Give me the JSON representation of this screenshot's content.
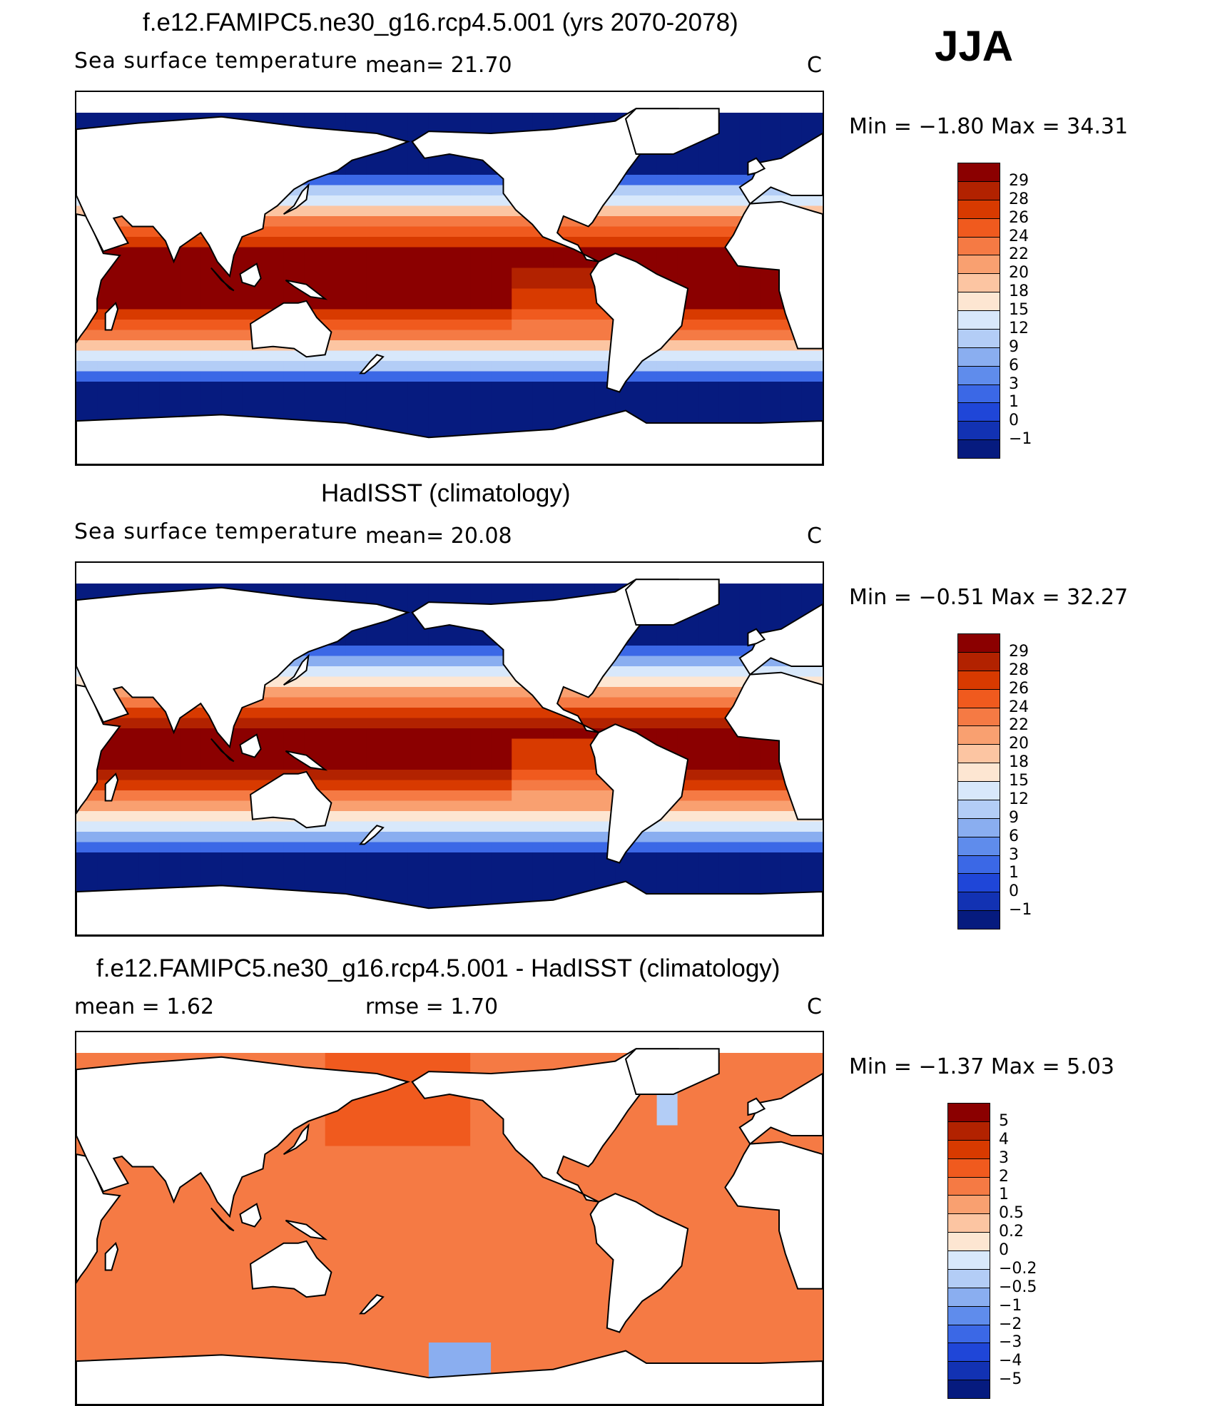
{
  "season": "JJA",
  "panels": [
    {
      "title": "f.e12.FAMIPC5.ne30_g16.rcp4.5.001 (yrs 2070-2078)",
      "variable": "Sea surface temperature",
      "stat1": "mean=   21.70",
      "stat2": "",
      "units": "C",
      "minmax": "Min =   −1.80  Max =    34.31",
      "colorbar": {
        "labels": [
          "29",
          "28",
          "26",
          "24",
          "22",
          "20",
          "18",
          "15",
          "12",
          "9",
          "6",
          "3",
          "1",
          "0",
          "−1"
        ],
        "colors": [
          "#8b0000",
          "#b22200",
          "#d83a00",
          "#f05a1e",
          "#f57a44",
          "#f9a070",
          "#fcc5a2",
          "#fde6d2",
          "#d8e8fb",
          "#b3cdf6",
          "#8aaef0",
          "#5f8cec",
          "#3b68e6",
          "#1f46d8",
          "#1232b3",
          "#061b7f"
        ]
      },
      "field": "sst_model"
    },
    {
      "title": "HadISST (climatology)",
      "variable": "Sea surface temperature",
      "stat1": "mean=   20.08",
      "stat2": "",
      "units": "C",
      "minmax": "Min =   −0.51  Max =    32.27",
      "colorbar": {
        "labels": [
          "29",
          "28",
          "26",
          "24",
          "22",
          "20",
          "18",
          "15",
          "12",
          "9",
          "6",
          "3",
          "1",
          "0",
          "−1"
        ],
        "colors": [
          "#8b0000",
          "#b22200",
          "#d83a00",
          "#f05a1e",
          "#f57a44",
          "#f9a070",
          "#fcc5a2",
          "#fde6d2",
          "#d8e8fb",
          "#b3cdf6",
          "#8aaef0",
          "#5f8cec",
          "#3b68e6",
          "#1f46d8",
          "#1232b3",
          "#061b7f"
        ]
      },
      "field": "sst_obs"
    },
    {
      "title": "f.e12.FAMIPC5.ne30_g16.rcp4.5.001 - HadISST (climatology)",
      "variable": "",
      "stat1": "mean =    1.62",
      "stat2": "rmse =    1.70",
      "units": "C",
      "minmax": "Min =   −1.37  Max =     5.03",
      "colorbar": {
        "labels": [
          "5",
          "4",
          "3",
          "2",
          "1",
          "0.5",
          "0.2",
          "0",
          "−0.2",
          "−0.5",
          "−1",
          "−2",
          "−3",
          "−4",
          "−5"
        ],
        "colors": [
          "#8b0000",
          "#b22200",
          "#d83a00",
          "#f05a1e",
          "#f57a44",
          "#f9a070",
          "#fcc5a2",
          "#fde6d2",
          "#d8e8fb",
          "#b3cdf6",
          "#8aaef0",
          "#5f8cec",
          "#3b68e6",
          "#1f46d8",
          "#1232b3",
          "#061b7f"
        ]
      },
      "field": "sst_diff"
    }
  ]
}
